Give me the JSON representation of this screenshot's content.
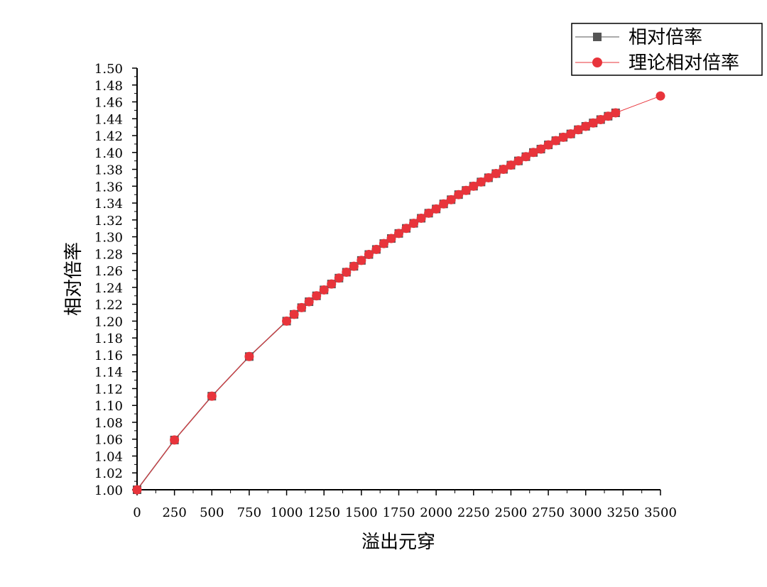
{
  "chart_data": {
    "type": "line",
    "xlabel": "溢出元穿",
    "ylabel": "相对倍率",
    "xlim": [
      0,
      3500
    ],
    "ylim": [
      1.0,
      1.5
    ],
    "x_ticks": [
      "0",
      "250",
      "500",
      "750",
      "1000",
      "1250",
      "1500",
      "1750",
      "2000",
      "2250",
      "2500",
      "2750",
      "3000",
      "3250",
      "3500"
    ],
    "y_ticks": [
      "1.00",
      "1.02",
      "1.04",
      "1.06",
      "1.08",
      "1.10",
      "1.12",
      "1.14",
      "1.16",
      "1.18",
      "1.20",
      "1.22",
      "1.24",
      "1.26",
      "1.28",
      "1.30",
      "1.32",
      "1.34",
      "1.36",
      "1.38",
      "1.40",
      "1.42",
      "1.44",
      "1.46",
      "1.48",
      "1.50"
    ],
    "legend_position": "top-right",
    "series": [
      {
        "name": "相对倍率",
        "marker": "square",
        "color": "#555555",
        "x": [
          0,
          250,
          500,
          750,
          1000,
          1050,
          1100,
          1150,
          1200,
          1250,
          1300,
          1350,
          1400,
          1450,
          1500,
          1550,
          1600,
          1650,
          1700,
          1750,
          1800,
          1850,
          1900,
          1950,
          2000,
          2050,
          2100,
          2150,
          2200,
          2250,
          2300,
          2350,
          2400,
          2450,
          2500,
          2550,
          2600,
          2650,
          2700,
          2750,
          2800,
          2850,
          2900,
          2950,
          3000,
          3050,
          3100,
          3150,
          3200
        ],
        "y": [
          1.0,
          1.059,
          1.111,
          1.158,
          1.2,
          1.208,
          1.216,
          1.223,
          1.23,
          1.237,
          1.244,
          1.251,
          1.258,
          1.265,
          1.272,
          1.279,
          1.285,
          1.292,
          1.298,
          1.304,
          1.31,
          1.316,
          1.322,
          1.328,
          1.333,
          1.339,
          1.344,
          1.35,
          1.355,
          1.36,
          1.365,
          1.37,
          1.375,
          1.38,
          1.385,
          1.39,
          1.395,
          1.4,
          1.404,
          1.409,
          1.414,
          1.418,
          1.422,
          1.427,
          1.431,
          1.435,
          1.439,
          1.443,
          1.447
        ]
      },
      {
        "name": "理论相对倍率",
        "marker": "circle",
        "color": "#e8343b",
        "x": [
          0,
          250,
          500,
          750,
          1000,
          1050,
          1100,
          1150,
          1200,
          1250,
          1300,
          1350,
          1400,
          1450,
          1500,
          1550,
          1600,
          1650,
          1700,
          1750,
          1800,
          1850,
          1900,
          1950,
          2000,
          2050,
          2100,
          2150,
          2200,
          2250,
          2300,
          2350,
          2400,
          2450,
          2500,
          2550,
          2600,
          2650,
          2700,
          2750,
          2800,
          2850,
          2900,
          2950,
          3000,
          3050,
          3100,
          3150,
          3200,
          3500
        ],
        "y": [
          1.0,
          1.059,
          1.111,
          1.158,
          1.2,
          1.208,
          1.216,
          1.223,
          1.23,
          1.237,
          1.244,
          1.251,
          1.258,
          1.265,
          1.272,
          1.279,
          1.285,
          1.292,
          1.298,
          1.304,
          1.31,
          1.316,
          1.322,
          1.328,
          1.333,
          1.339,
          1.344,
          1.35,
          1.355,
          1.36,
          1.365,
          1.37,
          1.375,
          1.38,
          1.385,
          1.39,
          1.395,
          1.4,
          1.404,
          1.409,
          1.414,
          1.418,
          1.422,
          1.427,
          1.431,
          1.435,
          1.439,
          1.443,
          1.447,
          1.467
        ]
      }
    ]
  }
}
